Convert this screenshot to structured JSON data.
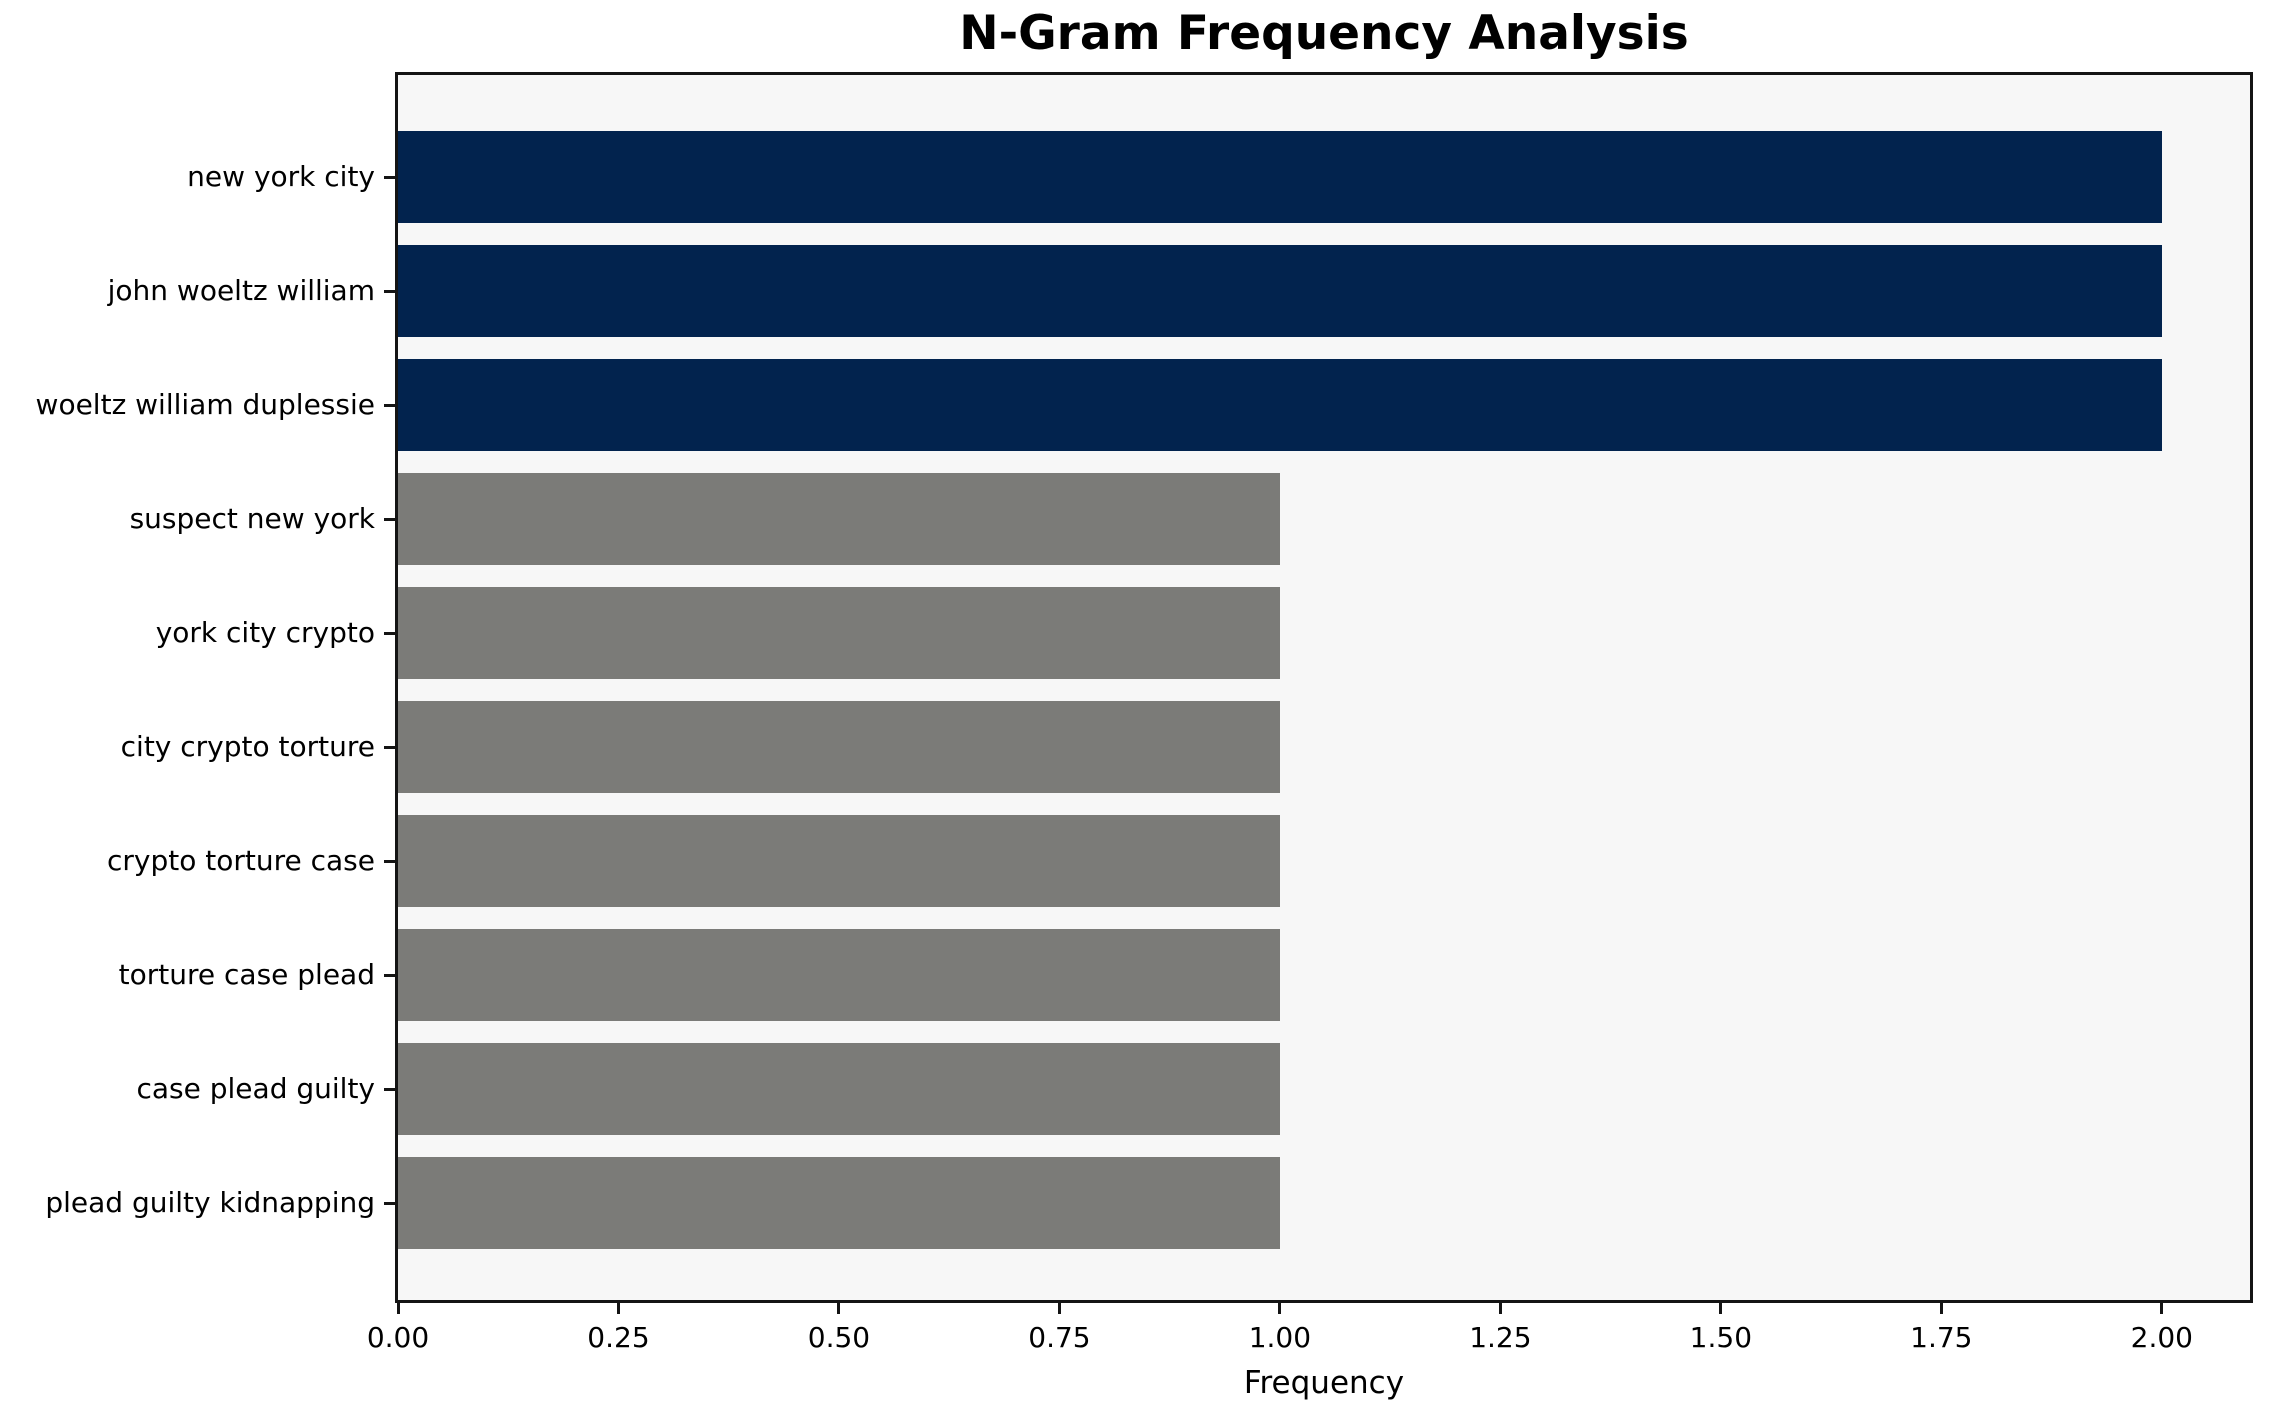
{
  "chart_data": {
    "type": "bar",
    "orientation": "horizontal",
    "title": "N-Gram Frequency Analysis",
    "xlabel": "Frequency",
    "ylabel": "",
    "categories": [
      "new york city",
      "john woeltz william",
      "woeltz william duplessie",
      "suspect new york",
      "york city crypto",
      "city crypto torture",
      "crypto torture case",
      "torture case plead",
      "case plead guilty",
      "plead guilty kidnapping"
    ],
    "values": [
      2.0,
      2.0,
      2.0,
      1.0,
      1.0,
      1.0,
      1.0,
      1.0,
      1.0,
      1.0
    ],
    "bar_colors": [
      "#02234e",
      "#02234e",
      "#02234e",
      "#7b7b78",
      "#7b7b78",
      "#7b7b78",
      "#7b7b78",
      "#7b7b78",
      "#7b7b78",
      "#7b7b78"
    ],
    "xlim": [
      0,
      2.1
    ],
    "xtick_values": [
      0,
      0.25,
      0.5,
      0.75,
      1.0,
      1.25,
      1.5,
      1.75,
      2.0
    ],
    "xtick_labels": [
      "0.00",
      "0.25",
      "0.50",
      "0.75",
      "1.00",
      "1.25",
      "1.50",
      "1.75",
      "2.00"
    ],
    "grid": false,
    "legend": "none",
    "colors": {
      "highlight_bar": "#02234e",
      "default_bar": "#7b7b78",
      "plot_background": "#f7f7f7",
      "figure_background": "#ffffff",
      "axis": "#141414",
      "text": "#000000"
    }
  }
}
